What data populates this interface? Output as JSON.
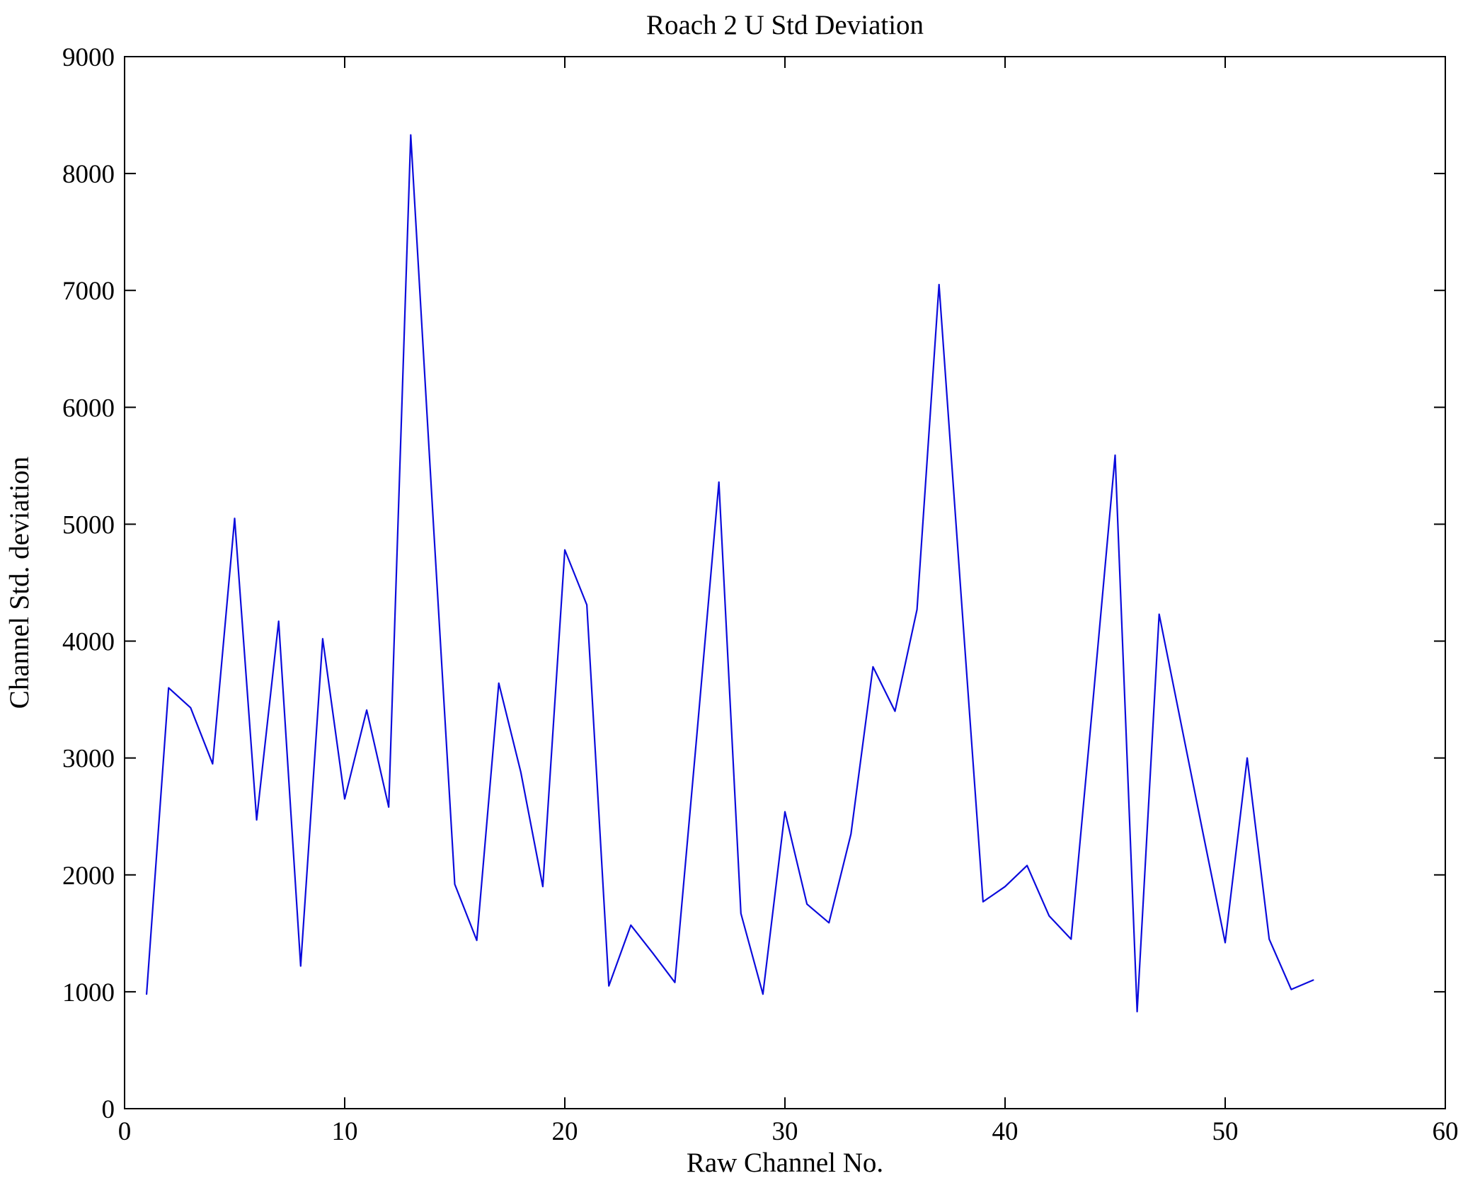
{
  "chart_data": {
    "type": "line",
    "title": "Roach 2 U Std Deviation",
    "xlabel": "Raw Channel No.",
    "ylabel": "Channel Std. deviation",
    "xlim": [
      0,
      60
    ],
    "ylim": [
      0,
      9000
    ],
    "x_ticks": [
      0,
      10,
      20,
      30,
      40,
      50,
      60
    ],
    "y_ticks": [
      0,
      1000,
      2000,
      3000,
      4000,
      5000,
      6000,
      7000,
      8000,
      9000
    ],
    "grid": false,
    "legend": "none",
    "line_color": "#0b0bdc",
    "axis_color": "#000000",
    "x": [
      1,
      2,
      3,
      4,
      5,
      6,
      7,
      8,
      9,
      10,
      11,
      12,
      13,
      14,
      15,
      16,
      17,
      18,
      19,
      20,
      21,
      22,
      23,
      24,
      25,
      26,
      27,
      28,
      29,
      30,
      31,
      32,
      33,
      34,
      35,
      36,
      37,
      38,
      39,
      40,
      41,
      42,
      43,
      44,
      45,
      46,
      47,
      48,
      49,
      50,
      51,
      52,
      53,
      54
    ],
    "y": [
      980,
      3600,
      3430,
      2950,
      5050,
      2470,
      4170,
      1220,
      4020,
      2650,
      3410,
      2580,
      8330,
      5100,
      1920,
      1440,
      3640,
      2880,
      1900,
      4780,
      4310,
      1050,
      1570,
      1330,
      1080,
      3200,
      5360,
      1670,
      980,
      2540,
      1750,
      1590,
      2350,
      3780,
      3400,
      4270,
      7050,
      4400,
      1770,
      1900,
      2080,
      1650,
      1450,
      3500,
      5590,
      830,
      4230,
      3290,
      2350,
      1420,
      3000,
      1450,
      1020,
      1100
    ]
  }
}
